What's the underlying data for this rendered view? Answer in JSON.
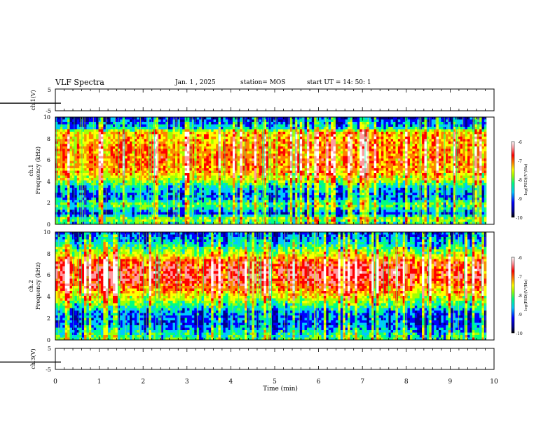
{
  "header": {
    "title": "VLF Spectra",
    "date": "Jan. 1 , 2025",
    "station": "station= MOS",
    "start_ut": "start UT =   14: 50: 1"
  },
  "colors": {
    "colormap": [
      "#00008b",
      "#0000ff",
      "#00c8ff",
      "#00ff80",
      "#a0ff00",
      "#ffff00",
      "#ff8000",
      "#ff0000",
      "#ff9aa0",
      "#ffffff"
    ],
    "background": "#000050",
    "trace": "#000000"
  },
  "chart_data": [
    {
      "type": "line",
      "panel": "ch1-waveform",
      "ylabel": "ch.1(V)",
      "ylim": [
        -5,
        5
      ],
      "yticks": [
        "5",
        "-5"
      ],
      "xlim": [
        0,
        10
      ],
      "baseline": -1.5,
      "grid": false
    },
    {
      "type": "heatmap",
      "panel": "ch1-spectrogram",
      "ylabel_top": "ch.1",
      "ylabel": "Frequency (kHz)",
      "ylim": [
        0,
        10
      ],
      "yticks": [
        "0",
        "2",
        "4",
        "6",
        "8",
        "10"
      ],
      "xlim": [
        0,
        10
      ],
      "x_end_data": 9.83,
      "intensity_profile": [
        {
          "f": 0.0,
          "level": 0.35
        },
        {
          "f": 0.5,
          "level": 0.5
        },
        {
          "f": 1.0,
          "level": 0.18
        },
        {
          "f": 1.8,
          "level": 0.45
        },
        {
          "f": 2.5,
          "level": 0.22
        },
        {
          "f": 3.5,
          "level": 0.3
        },
        {
          "f": 4.2,
          "level": 0.55
        },
        {
          "f": 5.0,
          "level": 0.66
        },
        {
          "f": 6.0,
          "level": 0.7
        },
        {
          "f": 7.0,
          "level": 0.68
        },
        {
          "f": 8.6,
          "level": 0.62
        },
        {
          "f": 9.0,
          "level": 0.3
        },
        {
          "f": 10.0,
          "level": 0.12
        }
      ],
      "colorbar": {
        "label": "log(PSD)(V²/Hz)",
        "range": [
          -10,
          -6
        ],
        "ticks": [
          "-6",
          "-7",
          "-8",
          "-9",
          "-10"
        ]
      }
    },
    {
      "type": "heatmap",
      "panel": "ch2-spectrogram",
      "ylabel_top": "ch.2",
      "ylabel": "Frequency (kHz)",
      "ylim": [
        0,
        10
      ],
      "yticks": [
        "0",
        "2",
        "4",
        "6",
        "8",
        "10"
      ],
      "xlim": [
        0,
        10
      ],
      "x_end_data": 9.83,
      "intensity_profile": [
        {
          "f": 0.0,
          "level": 0.4
        },
        {
          "f": 0.5,
          "level": 0.35
        },
        {
          "f": 1.5,
          "level": 0.18
        },
        {
          "f": 2.5,
          "level": 0.22
        },
        {
          "f": 3.5,
          "level": 0.45
        },
        {
          "f": 4.5,
          "level": 0.66
        },
        {
          "f": 5.5,
          "level": 0.78
        },
        {
          "f": 6.5,
          "level": 0.8
        },
        {
          "f": 7.2,
          "level": 0.74
        },
        {
          "f": 8.0,
          "level": 0.52
        },
        {
          "f": 9.0,
          "level": 0.3
        },
        {
          "f": 10.0,
          "level": 0.15
        }
      ],
      "colorbar": {
        "label": "log(PSD)(V²/Hz)",
        "range": [
          -10,
          -6
        ],
        "ticks": [
          "-6",
          "-7",
          "-8",
          "-9",
          "-10"
        ]
      }
    },
    {
      "type": "line",
      "panel": "ch3-waveform",
      "ylabel": "ch.3(V)",
      "ylim": [
        -5,
        5
      ],
      "yticks": [
        "5",
        "-5"
      ],
      "xlim": [
        0,
        10
      ],
      "baseline": -1.5,
      "grid": false
    }
  ],
  "xaxis": {
    "label": "Time (min)",
    "ticks": [
      "0",
      "1",
      "2",
      "3",
      "4",
      "5",
      "6",
      "7",
      "8",
      "9",
      "10"
    ]
  }
}
